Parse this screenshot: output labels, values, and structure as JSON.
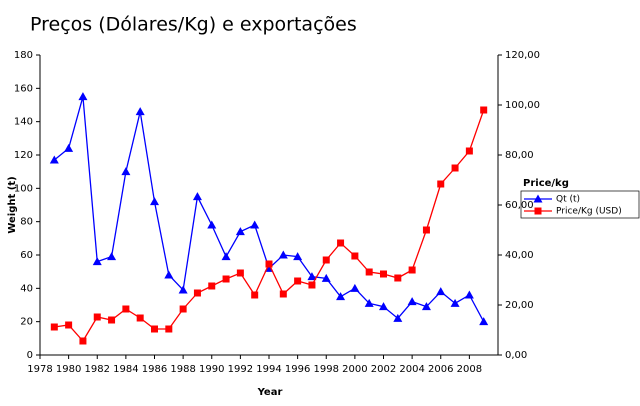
{
  "chart_data": {
    "type": "line",
    "title": "Preços (Dólares/Kg) e exportações",
    "x_label": "Year",
    "y_label": "Weight (t)",
    "legend_title": "Price/kg",
    "x": [
      1979,
      1980,
      1981,
      1982,
      1983,
      1984,
      1985,
      1986,
      1987,
      1988,
      1989,
      1990,
      1991,
      1992,
      1993,
      1994,
      1995,
      1996,
      1997,
      1998,
      1999,
      2000,
      2001,
      2002,
      2003,
      2004,
      2005,
      2006,
      2007,
      2008,
      2009
    ],
    "series": [
      {
        "name": "Qt (t)",
        "color": "#0000ff",
        "marker": "triangle",
        "values": [
          117,
          124,
          155,
          56,
          59,
          110,
          146,
          92,
          48,
          39,
          95,
          78,
          59,
          74,
          78,
          52,
          60,
          59,
          47,
          46,
          35,
          40,
          31,
          29,
          22,
          32,
          29,
          38,
          31,
          36,
          20
        ]
      },
      {
        "name": "Price/Kg (USD)",
        "color": "#ff0000",
        "marker": "square",
        "axis": "y2",
        "values": [
          11.2,
          12,
          5.6,
          15.2,
          14,
          18.4,
          14.8,
          10.4,
          10.4,
          18.4,
          24.8,
          27.6,
          30.4,
          32.8,
          24,
          36.4,
          24.4,
          29.6,
          28,
          38,
          44.8,
          39.6,
          33.2,
          32.4,
          30.8,
          34,
          50,
          68.4,
          74.8,
          81.6,
          98
        ]
      }
    ],
    "xlim": [
      1978,
      2010
    ],
    "xticks": [
      1978,
      1980,
      1982,
      1984,
      1986,
      1988,
      1990,
      1992,
      1994,
      1996,
      1998,
      2000,
      2002,
      2004,
      2006,
      2008
    ],
    "ylim": [
      0,
      180
    ],
    "yticks": [
      0,
      20,
      40,
      60,
      80,
      100,
      120,
      140,
      160,
      180
    ],
    "y2lim": [
      0,
      120
    ],
    "y2ticks": [
      {
        "value": 0,
        "label": "0,00"
      },
      {
        "value": 20,
        "label": "20,00"
      },
      {
        "value": 40,
        "label": "40,00"
      },
      {
        "value": 60,
        "label": "60,00"
      },
      {
        "value": 80,
        "label": "80,00"
      },
      {
        "value": 100,
        "label": "100,00"
      },
      {
        "value": 120,
        "label": "120,00"
      }
    ],
    "grid": false,
    "legend_position": "right"
  }
}
